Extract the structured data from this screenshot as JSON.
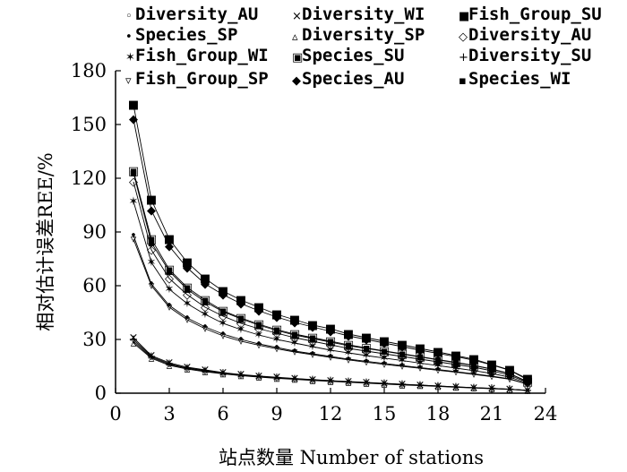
{
  "chart_data": {
    "type": "line",
    "xlabel": "站点数量 Number of stations",
    "ylabel": "相对估计误差REE/%",
    "xlim": [
      0,
      24
    ],
    "ylim": [
      0,
      180
    ],
    "xticks": [
      0,
      3,
      6,
      9,
      12,
      15,
      18,
      21,
      24
    ],
    "yticks": [
      0,
      30,
      60,
      90,
      120,
      150,
      180
    ],
    "grid": false,
    "legend_position": "top",
    "x": [
      1,
      2,
      3,
      4,
      5,
      6,
      7,
      8,
      9,
      10,
      11,
      12,
      13,
      14,
      15,
      16,
      17,
      18,
      19,
      20,
      21,
      22,
      23
    ],
    "series": [
      {
        "name": "Diversity_AU",
        "marker": "◦",
        "values": [
          29,
          20,
          16,
          14,
          12.5,
          11,
          10,
          9.3,
          8.6,
          8,
          7.4,
          6.8,
          6.3,
          5.8,
          5.3,
          4.8,
          4.4,
          3.9,
          3.4,
          3,
          2.6,
          2.2,
          1.5
        ]
      },
      {
        "name": "Diversity_WI",
        "marker": "×",
        "values": [
          31,
          21,
          17,
          14.5,
          13,
          11.5,
          10.4,
          9.6,
          8.9,
          8.2,
          7.6,
          7,
          6.5,
          6,
          5.5,
          5,
          4.5,
          4,
          3.5,
          3.1,
          2.7,
          2.2,
          1.6
        ]
      },
      {
        "name": "Fish_Group_SU",
        "marker": "■",
        "values": [
          161,
          108,
          86,
          73,
          64,
          57,
          52,
          48,
          44,
          41,
          38,
          36,
          33,
          31,
          29,
          27,
          25,
          23,
          21,
          19,
          16,
          13,
          8
        ]
      },
      {
        "name": "Species_SP",
        "marker": "•",
        "values": [
          88,
          61,
          49,
          42,
          37,
          33,
          30,
          27.5,
          25.5,
          23.5,
          22,
          20.5,
          19,
          17.8,
          16.6,
          15.4,
          14.3,
          13.2,
          12,
          10.8,
          9.5,
          8,
          5
        ]
      },
      {
        "name": "Diversity_SP",
        "marker": "▵",
        "values": [
          28,
          19.5,
          15.5,
          13.5,
          12,
          10.8,
          9.8,
          9,
          8.3,
          7.7,
          7.1,
          6.6,
          6.1,
          5.6,
          5.1,
          4.6,
          4.2,
          3.8,
          3.3,
          2.9,
          2.5,
          2.1,
          1.5
        ]
      },
      {
        "name": "Diversity_AU",
        "marker": "◇",
        "values": [
          118,
          80,
          64,
          55,
          48,
          43,
          39,
          36,
          33.5,
          31,
          29,
          27,
          25,
          23.5,
          22,
          20.5,
          19,
          17.5,
          16,
          14.5,
          12.5,
          10,
          6
        ]
      },
      {
        "name": "Fish_Group_WI",
        "marker": "✶",
        "values": [
          107,
          73,
          58,
          50,
          44,
          39,
          35.5,
          32.5,
          30,
          28,
          26,
          24,
          22.5,
          21,
          19.6,
          18.2,
          16.8,
          15.4,
          14,
          12.6,
          11,
          9,
          5.5
        ]
      },
      {
        "name": "Species_SU",
        "marker": "▣",
        "values": [
          124,
          86,
          69,
          59,
          52,
          46,
          42,
          38.5,
          35.5,
          33,
          31,
          29,
          27,
          25.3,
          23.6,
          22,
          20.4,
          18.8,
          17.2,
          15.5,
          13.5,
          11,
          6.5
        ]
      },
      {
        "name": "Diversity_SU",
        "marker": "+",
        "values": [
          30,
          20.5,
          16.5,
          14,
          12.5,
          11.2,
          10.2,
          9.4,
          8.7,
          8.1,
          7.5,
          6.9,
          6.4,
          5.9,
          5.4,
          4.9,
          4.5,
          4,
          3.5,
          3.1,
          2.7,
          2.2,
          1.6
        ]
      },
      {
        "name": "Fish_Group_SP",
        "marker": "▿",
        "values": [
          86,
          60,
          48,
          41,
          36,
          32,
          29,
          26.8,
          24.8,
          23,
          21.5,
          20,
          18.6,
          17.3,
          16.1,
          15,
          13.9,
          12.8,
          11.7,
          10.5,
          9.2,
          7.8,
          5
        ]
      },
      {
        "name": "Species_AU",
        "marker": "◆",
        "values": [
          153,
          102,
          82,
          70,
          61,
          55,
          50,
          46,
          42.5,
          39.5,
          37,
          34.5,
          32,
          30,
          28,
          26,
          24,
          22.2,
          20.4,
          18.4,
          15.8,
          12.8,
          7.5
        ]
      },
      {
        "name": "Species_WI",
        "marker": "▪",
        "values": [
          123,
          84,
          68,
          58,
          51,
          45.5,
          41.5,
          38,
          35,
          32.5,
          30.5,
          28.5,
          26.5,
          25,
          23.4,
          21.8,
          20.2,
          18.6,
          17,
          15.4,
          13.4,
          10.8,
          6.3
        ]
      }
    ]
  }
}
